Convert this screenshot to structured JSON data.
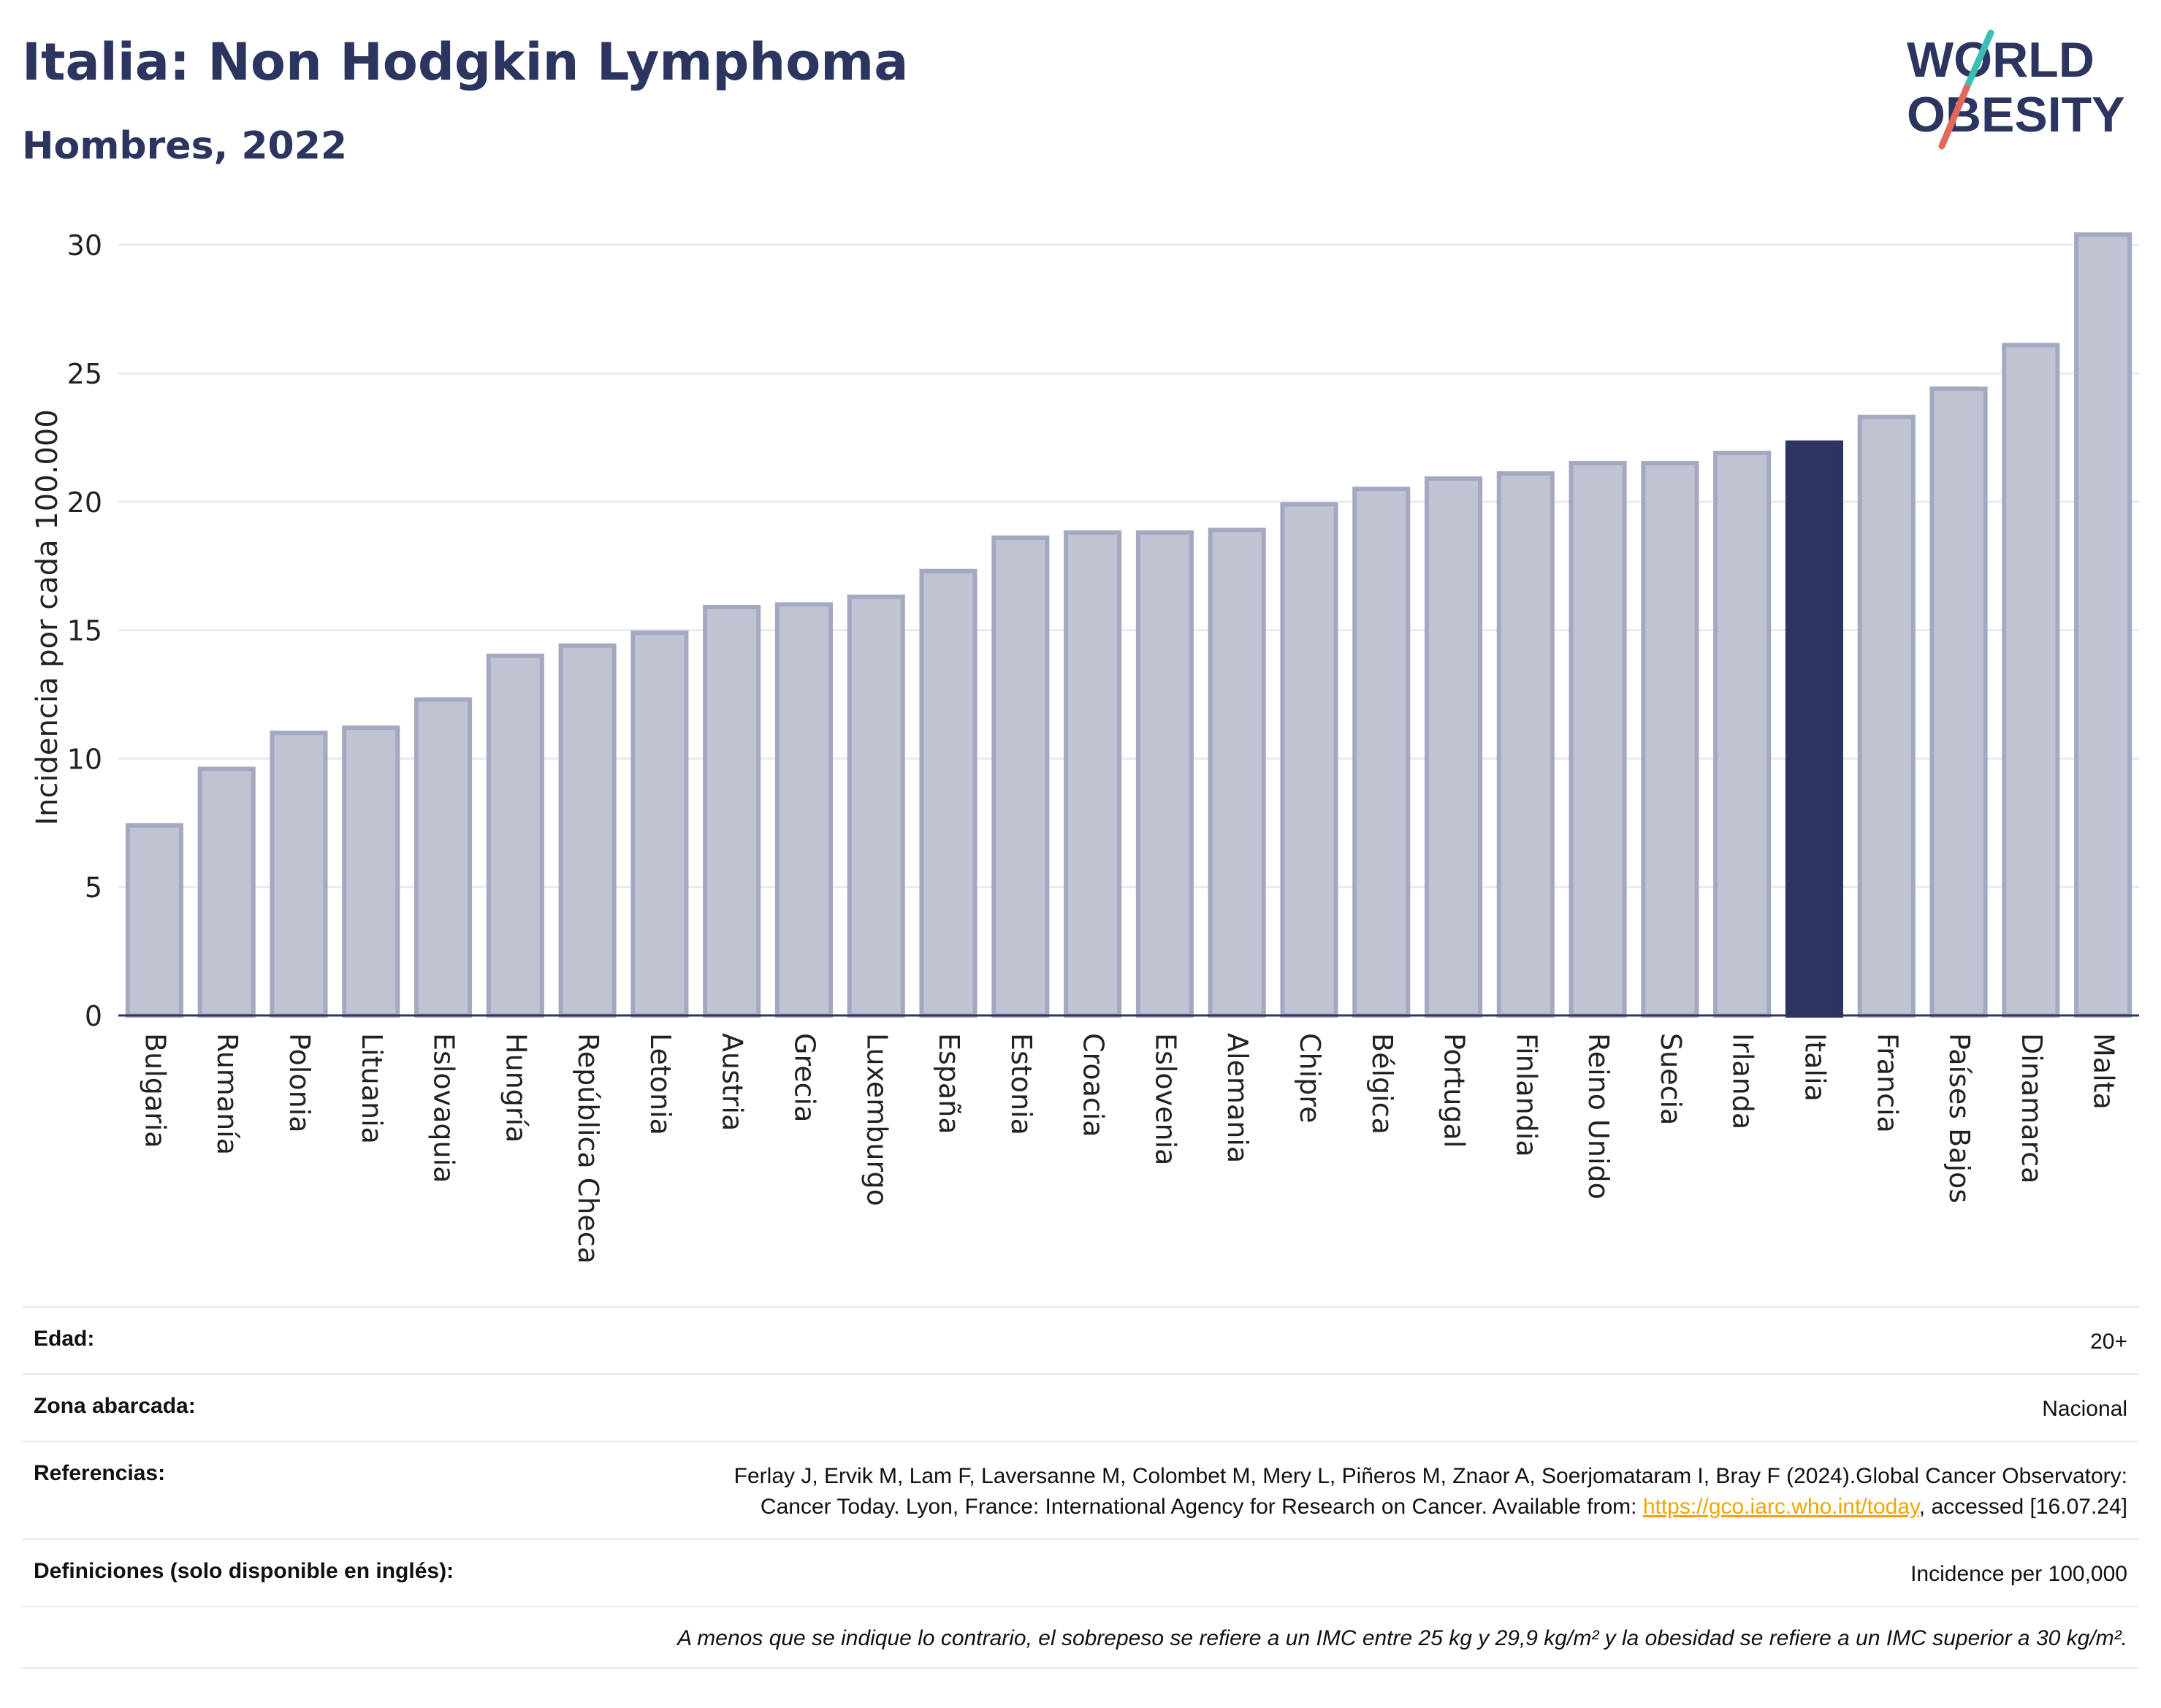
{
  "title": "Italia: Non Hodgkin Lymphoma",
  "subtitle": "Hombres, 2022",
  "logo": {
    "line1": "WORLD",
    "line2": "OBESITY",
    "colors": {
      "text": "#2b3560",
      "slash_top": "#3cbfb3",
      "slash_bottom": "#e4685a"
    }
  },
  "chart_data": {
    "type": "bar",
    "ylabel": "Incidencia por cada 100.000",
    "ylim": [
      0,
      31
    ],
    "yticks": [
      0,
      5,
      10,
      15,
      20,
      25,
      30
    ],
    "grid": true,
    "highlight": "Italia",
    "colors": {
      "bar": "#c0c4d2",
      "bar_edge": "#a3a9c1",
      "highlight": "#2b3560"
    },
    "categories": [
      "Bulgaria",
      "Rumanía",
      "Polonia",
      "Lituania",
      "Eslovaquia",
      "Hungría",
      "República Checa",
      "Letonia",
      "Austria",
      "Grecia",
      "Luxemburgo",
      "España",
      "Estonia",
      "Croacia",
      "Eslovenia",
      "Alemania",
      "Chipre",
      "Bélgica",
      "Portugal",
      "Finlandia",
      "Reino Unido",
      "Suecia",
      "Irlanda",
      "Italia",
      "Francia",
      "Países Bajos",
      "Dinamarca",
      "Malta"
    ],
    "values": [
      7.4,
      9.6,
      11.0,
      11.2,
      12.3,
      14.0,
      14.4,
      14.9,
      15.9,
      16.0,
      16.3,
      17.3,
      18.6,
      18.8,
      18.8,
      18.9,
      19.9,
      20.5,
      20.9,
      21.1,
      21.5,
      21.5,
      21.9,
      22.3,
      23.3,
      24.4,
      26.1,
      30.4
    ]
  },
  "info": {
    "age_label": "Edad:",
    "age_value": "20+",
    "zone_label": "Zona abarcada:",
    "zone_value": "Nacional",
    "ref_label": "Referencias:",
    "ref_text_1": "Ferlay J, Ervik M, Lam F, Laversanne M, Colombet M, Mery L, Piñeros M, Znaor A, Soerjomataram I, Bray F (2024).Global Cancer Observatory: Cancer Today. Lyon, France: International Agency for Research on Cancer. Available from: ",
    "ref_link": "https://gco.iarc.who.int/today",
    "ref_text_2": ", accessed [16.07.24]",
    "def_label": "Definiciones (solo disponible en inglés):",
    "def_value": "Incidence per 100,000",
    "note": "A menos que se indique lo contrario, el sobrepeso se refiere a un IMC entre 25 kg y 29,9 kg/m² y la obesidad se refiere a un IMC superior a 30 kg/m²."
  }
}
